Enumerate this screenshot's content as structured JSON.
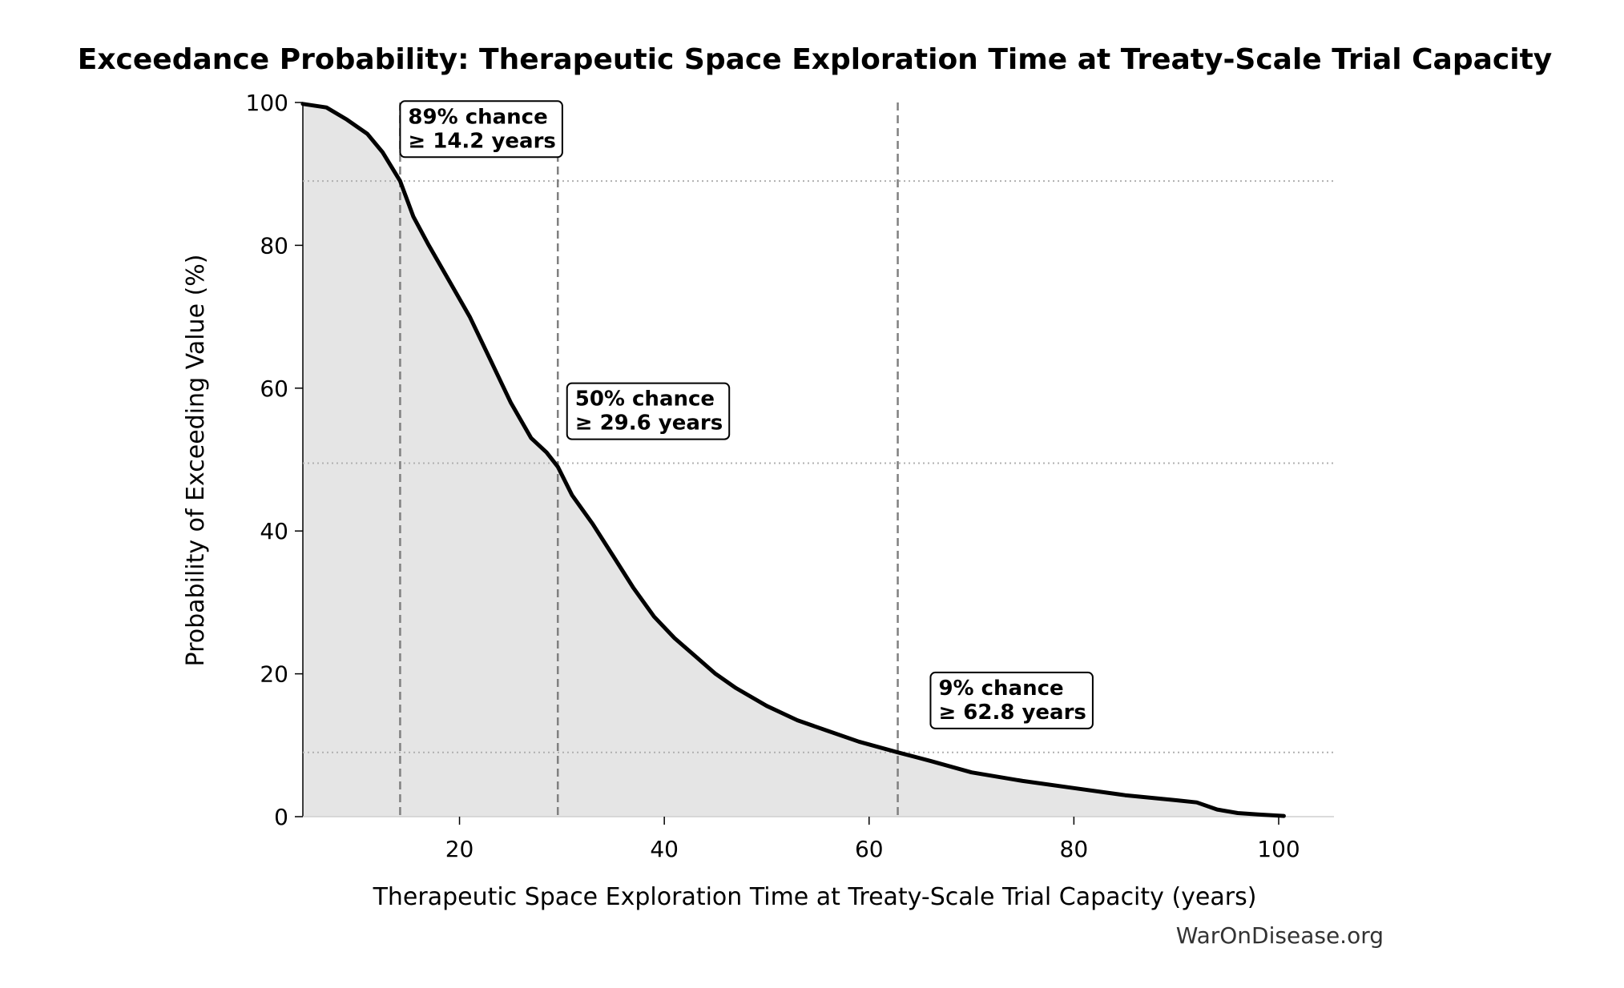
{
  "chart_data": {
    "type": "area",
    "title": "Exceedance Probability: Therapeutic Space Exploration Time at Treaty-Scale Trial Capacity",
    "xlabel": "Therapeutic Space Exploration Time at Treaty-Scale Trial Capacity (years)",
    "ylabel": "Probability of Exceeding Value (%)",
    "xlim": [
      4.7,
      105.4
    ],
    "ylim": [
      0,
      100
    ],
    "xticks": [
      20,
      40,
      60,
      80,
      100
    ],
    "yticks": [
      0,
      20,
      40,
      60,
      80,
      100
    ],
    "grid": false,
    "series": [
      {
        "x": [
          4.7,
          7.0,
          9.0,
          11.0,
          12.5,
          14.2,
          15.5,
          17.0,
          19.0,
          21.0,
          23.0,
          25.0,
          27.0,
          28.5,
          29.6,
          31.0,
          33.0,
          35.0,
          37.0,
          39.0,
          41.0,
          43.0,
          45.0,
          47.0,
          50.0,
          53.0,
          56.0,
          59.0,
          62.8,
          66.0,
          70.0,
          75.0,
          80.0,
          85.0,
          90.0,
          92.0,
          94.0,
          96.0,
          98.0,
          100.5
        ],
        "y": [
          99.8,
          99.3,
          97.6,
          95.6,
          93.0,
          89.0,
          84.0,
          80.0,
          75.0,
          70.0,
          64.0,
          58.0,
          53.0,
          51.0,
          49.0,
          45.0,
          41.0,
          36.5,
          32.0,
          28.0,
          25.0,
          22.5,
          20.0,
          18.0,
          15.5,
          13.5,
          12.0,
          10.5,
          9.0,
          7.8,
          6.2,
          5.0,
          4.0,
          3.0,
          2.3,
          2.0,
          1.0,
          0.5,
          0.3,
          0.1
        ]
      }
    ],
    "reference_lines": {
      "vertical_x": [
        14.2,
        29.6,
        62.8
      ],
      "horizontal_y": [
        89,
        49.5,
        9
      ]
    },
    "annotations": [
      {
        "line1": "89% chance",
        "line2": "≥ 14.2 years",
        "x": 14.2,
        "y": 97.5
      },
      {
        "line1": "50% chance",
        "line2": "≥ 29.6 years",
        "x": 30.5,
        "y": 58
      },
      {
        "line1": "9% chance",
        "line2": "≥ 62.8 years",
        "x": 66.0,
        "y": 17.5
      }
    ],
    "colors": {
      "line": "#000000",
      "fill": "#e5e5e5",
      "reference": "#808080",
      "horizontal": "#b0b0b0"
    }
  },
  "credit": "WarOnDisease.org"
}
